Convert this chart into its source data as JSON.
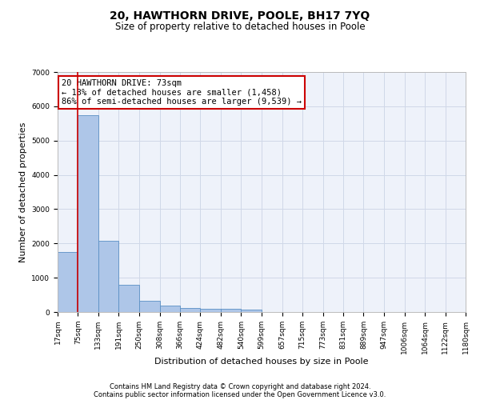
{
  "title1": "20, HAWTHORN DRIVE, POOLE, BH17 7YQ",
  "title2": "Size of property relative to detached houses in Poole",
  "xlabel": "Distribution of detached houses by size in Poole",
  "ylabel": "Number of detached properties",
  "bins": [
    17,
    75,
    133,
    191,
    250,
    308,
    366,
    424,
    482,
    540,
    599,
    657,
    715,
    773,
    831,
    889,
    947,
    1006,
    1064,
    1122,
    1180
  ],
  "bar_heights": [
    1750,
    5750,
    2080,
    800,
    330,
    190,
    110,
    95,
    90,
    70,
    0,
    0,
    0,
    0,
    0,
    0,
    0,
    0,
    0,
    0
  ],
  "bar_color": "#aec6e8",
  "bar_edge_color": "#5a8fc4",
  "property_size": 73,
  "red_line_color": "#cc0000",
  "annotation_line1": "20 HAWTHORN DRIVE: 73sqm",
  "annotation_line2": "← 13% of detached houses are smaller (1,458)",
  "annotation_line3": "86% of semi-detached houses are larger (9,539) →",
  "annotation_box_color": "#ffffff",
  "annotation_box_edge_color": "#cc0000",
  "ylim": [
    0,
    7000
  ],
  "yticks": [
    0,
    1000,
    2000,
    3000,
    4000,
    5000,
    6000,
    7000
  ],
  "footnote1": "Contains HM Land Registry data © Crown copyright and database right 2024.",
  "footnote2": "Contains public sector information licensed under the Open Government Licence v3.0.",
  "grid_color": "#d0d8e8",
  "bg_color": "#eef2fa",
  "title1_fontsize": 10,
  "title2_fontsize": 8.5,
  "xlabel_fontsize": 8,
  "ylabel_fontsize": 8,
  "tick_fontsize": 6.5,
  "footnote_fontsize": 6,
  "annotation_fontsize": 7.5
}
